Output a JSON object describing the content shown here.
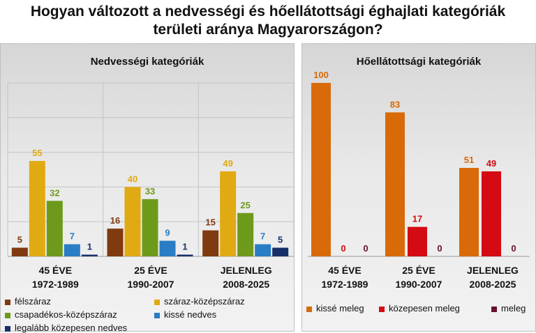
{
  "title_line1": "Hogyan változott a nedvességi és hőellátottsági éghajlati kategóriák",
  "title_line2": "területi aránya Magyarországon?",
  "chart_data": [
    {
      "type": "bar",
      "title": "Nedvességi kategóriák",
      "categories": [
        [
          "45 ÉVE",
          "1972-1989"
        ],
        [
          "25 ÉVE",
          "1990-2007"
        ],
        [
          "JELENLEG",
          "2008-2025"
        ]
      ],
      "ylim": [
        0,
        100
      ],
      "grid": true,
      "legend_position": "bottom",
      "series": [
        {
          "name": "félszáraz",
          "color": "#7f3a10",
          "values": [
            5,
            16,
            15
          ]
        },
        {
          "name": "száraz-középszáraz",
          "color": "#e0aa12",
          "values": [
            55,
            40,
            49
          ]
        },
        {
          "name": "csapadékos-középszáraz",
          "color": "#6e9a1c",
          "values": [
            32,
            33,
            25
          ]
        },
        {
          "name": "kissé nedves",
          "color": "#2a7dc4",
          "values": [
            7,
            9,
            7
          ]
        },
        {
          "name": "legalább közepesen nedves",
          "color": "#17306a",
          "values": [
            1,
            1,
            5
          ]
        }
      ]
    },
    {
      "type": "bar",
      "title": "Hőellátottsági kategóriák",
      "categories": [
        [
          "45 ÉVE",
          "1972-1989"
        ],
        [
          "25 ÉVE",
          "1990-2007"
        ],
        [
          "JELENLEG",
          "2008-2025"
        ]
      ],
      "ylim": [
        0,
        100
      ],
      "grid": false,
      "legend_position": "bottom",
      "series": [
        {
          "name": "kissé meleg",
          "color": "#d86a0a",
          "values": [
            100,
            83,
            51
          ]
        },
        {
          "name": "közepesen meleg",
          "color": "#d40b12",
          "values": [
            0,
            17,
            49
          ]
        },
        {
          "name": "meleg",
          "color": "#6a0f2e",
          "values": [
            0,
            0,
            0
          ]
        }
      ]
    }
  ]
}
